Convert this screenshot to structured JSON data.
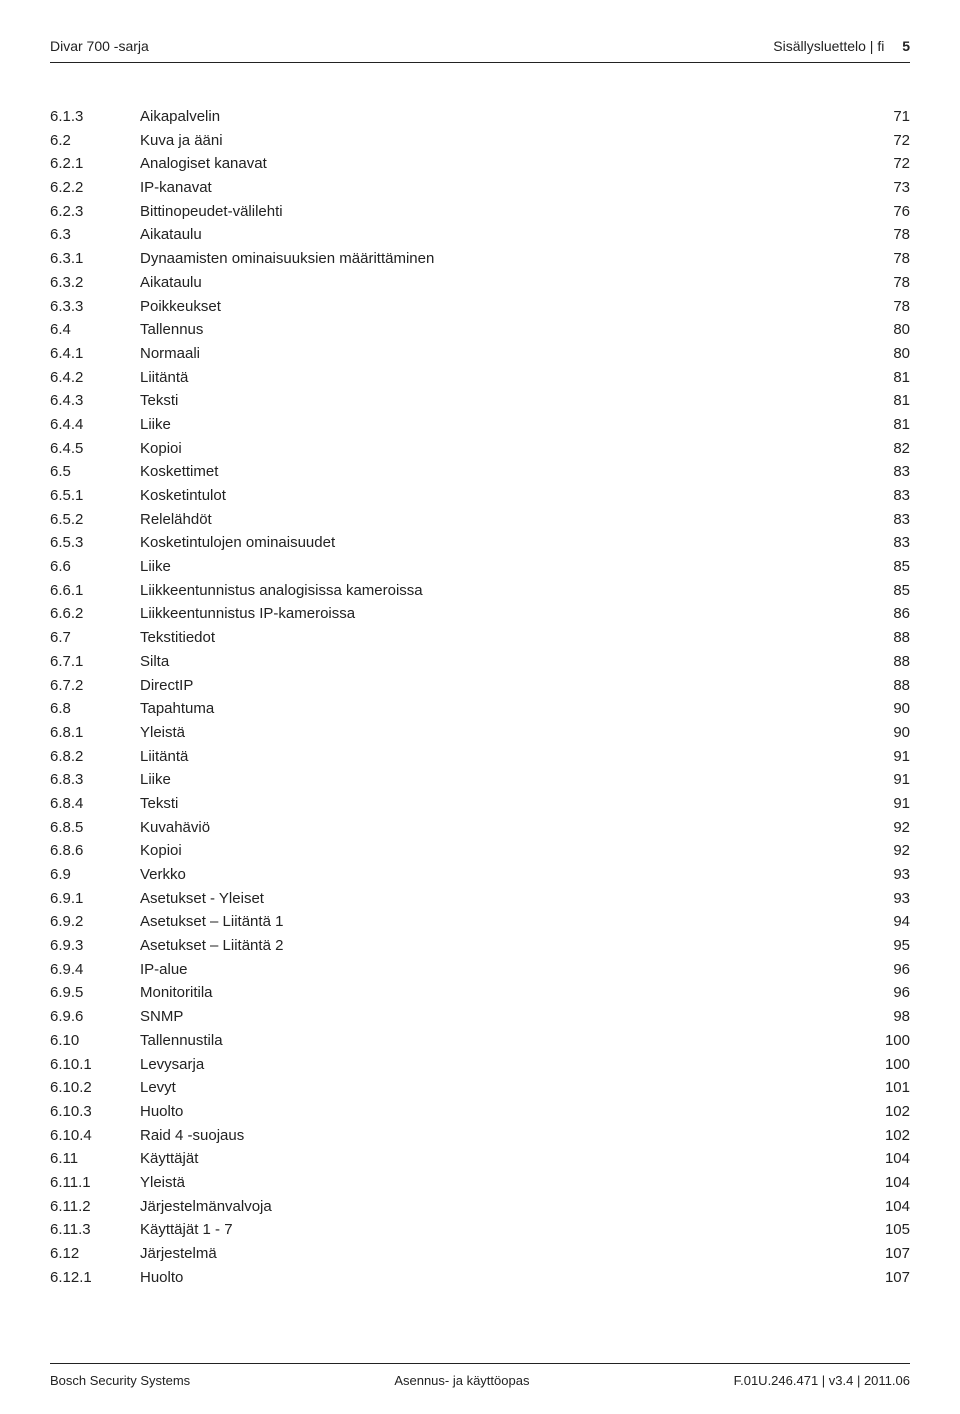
{
  "header": {
    "product": "Divar 700 -sarja",
    "section": "Sisällysluettelo | fi",
    "pagenum": "5"
  },
  "toc": [
    {
      "num": "6.1.3",
      "title": "Aikapalvelin",
      "page": "71"
    },
    {
      "num": "6.2",
      "title": "Kuva ja ääni",
      "page": "72"
    },
    {
      "num": "6.2.1",
      "title": "Analogiset kanavat",
      "page": "72"
    },
    {
      "num": "6.2.2",
      "title": "IP-kanavat",
      "page": "73"
    },
    {
      "num": "6.2.3",
      "title": "Bittinopeudet-välilehti",
      "page": "76"
    },
    {
      "num": "6.3",
      "title": "Aikataulu",
      "page": "78"
    },
    {
      "num": "6.3.1",
      "title": "Dynaamisten ominaisuuksien määrittäminen",
      "page": "78"
    },
    {
      "num": "6.3.2",
      "title": "Aikataulu",
      "page": "78"
    },
    {
      "num": "6.3.3",
      "title": "Poikkeukset",
      "page": "78"
    },
    {
      "num": "6.4",
      "title": "Tallennus",
      "page": "80"
    },
    {
      "num": "6.4.1",
      "title": "Normaali",
      "page": "80"
    },
    {
      "num": "6.4.2",
      "title": "Liitäntä",
      "page": "81"
    },
    {
      "num": "6.4.3",
      "title": "Teksti",
      "page": "81"
    },
    {
      "num": "6.4.4",
      "title": "Liike",
      "page": "81"
    },
    {
      "num": "6.4.5",
      "title": "Kopioi",
      "page": "82"
    },
    {
      "num": "6.5",
      "title": "Koskettimet",
      "page": "83"
    },
    {
      "num": "6.5.1",
      "title": "Kosketintulot",
      "page": "83"
    },
    {
      "num": "6.5.2",
      "title": "Relelähdöt",
      "page": "83"
    },
    {
      "num": "6.5.3",
      "title": "Kosketintulojen ominaisuudet",
      "page": "83"
    },
    {
      "num": "6.6",
      "title": "Liike",
      "page": "85"
    },
    {
      "num": "6.6.1",
      "title": "Liikkeentunnistus analogisissa kameroissa",
      "page": "85"
    },
    {
      "num": "6.6.2",
      "title": "Liikkeentunnistus IP-kameroissa",
      "page": "86"
    },
    {
      "num": "6.7",
      "title": "Tekstitiedot",
      "page": "88"
    },
    {
      "num": "6.7.1",
      "title": "Silta",
      "page": "88"
    },
    {
      "num": "6.7.2",
      "title": "DirectIP",
      "page": "88"
    },
    {
      "num": "6.8",
      "title": "Tapahtuma",
      "page": "90"
    },
    {
      "num": "6.8.1",
      "title": "Yleistä",
      "page": "90"
    },
    {
      "num": "6.8.2",
      "title": "Liitäntä",
      "page": "91"
    },
    {
      "num": "6.8.3",
      "title": "Liike",
      "page": "91"
    },
    {
      "num": "6.8.4",
      "title": "Teksti",
      "page": "91"
    },
    {
      "num": "6.8.5",
      "title": "Kuvahäviö",
      "page": "92"
    },
    {
      "num": "6.8.6",
      "title": "Kopioi",
      "page": "92"
    },
    {
      "num": "6.9",
      "title": "Verkko",
      "page": "93"
    },
    {
      "num": "6.9.1",
      "title": "Asetukset - Yleiset",
      "page": "93"
    },
    {
      "num": "6.9.2",
      "title": "Asetukset – Liitäntä 1",
      "page": "94"
    },
    {
      "num": "6.9.3",
      "title": "Asetukset – Liitäntä 2",
      "page": "95"
    },
    {
      "num": "6.9.4",
      "title": "IP-alue",
      "page": "96"
    },
    {
      "num": "6.9.5",
      "title": "Monitoritila",
      "page": "96"
    },
    {
      "num": "6.9.6",
      "title": "SNMP",
      "page": "98"
    },
    {
      "num": "6.10",
      "title": "Tallennustila",
      "page": "100"
    },
    {
      "num": "6.10.1",
      "title": "Levysarja",
      "page": "100"
    },
    {
      "num": "6.10.2",
      "title": "Levyt",
      "page": "101"
    },
    {
      "num": "6.10.3",
      "title": "Huolto",
      "page": "102"
    },
    {
      "num": "6.10.4",
      "title": "Raid 4 -suojaus",
      "page": "102"
    },
    {
      "num": "6.11",
      "title": "Käyttäjät",
      "page": "104"
    },
    {
      "num": "6.11.1",
      "title": "Yleistä",
      "page": "104"
    },
    {
      "num": "6.11.2",
      "title": "Järjestelmänvalvoja",
      "page": "104"
    },
    {
      "num": "6.11.3",
      "title": "Käyttäjät 1 - 7",
      "page": "105"
    },
    {
      "num": "6.12",
      "title": "Järjestelmä",
      "page": "107"
    },
    {
      "num": "6.12.1",
      "title": "Huolto",
      "page": "107"
    }
  ],
  "footer": {
    "left": "Bosch Security Systems",
    "center": "Asennus- ja käyttöopas",
    "right": "F.01U.246.471 | v3.4 | 2011.06"
  }
}
